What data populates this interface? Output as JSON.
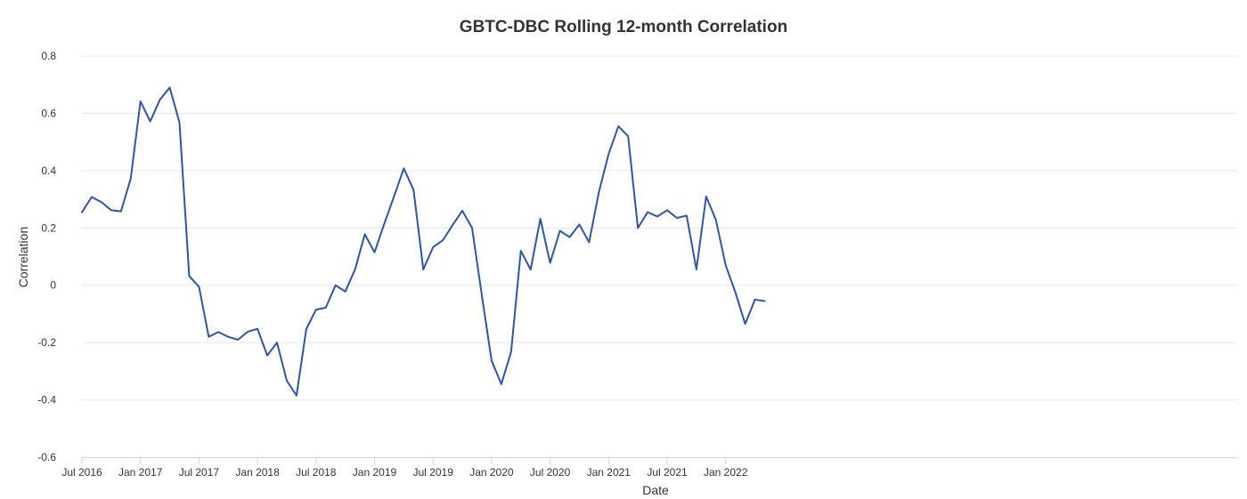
{
  "chart_data": {
    "type": "line",
    "title": "GBTC-DBC Rolling 12-month Correlation",
    "xlabel": "Date",
    "ylabel": "Correlation",
    "x_start": "2016-07",
    "ylim": [
      -0.6,
      0.8
    ],
    "y_ticks": [
      "0.8",
      "0.6",
      "0.4",
      "0.2",
      "0",
      "-0.2",
      "-0.4",
      "-0.6"
    ],
    "x_ticks": [
      {
        "date": "2016-07",
        "label": "Jul 2016"
      },
      {
        "date": "2017-01",
        "label": "Jan 2017"
      },
      {
        "date": "2017-07",
        "label": "Jul 2017"
      },
      {
        "date": "2018-01",
        "label": "Jan 2018"
      },
      {
        "date": "2018-07",
        "label": "Jul 2018"
      },
      {
        "date": "2019-01",
        "label": "Jan 2019"
      },
      {
        "date": "2019-07",
        "label": "Jul 2019"
      },
      {
        "date": "2020-01",
        "label": "Jan 2020"
      },
      {
        "date": "2020-07",
        "label": "Jul 2020"
      },
      {
        "date": "2021-01",
        "label": "Jan 2021"
      },
      {
        "date": "2021-07",
        "label": "Jul 2021"
      },
      {
        "date": "2022-01",
        "label": "Jan 2022"
      }
    ],
    "grid": true,
    "legend": "none",
    "series": [
      {
        "color": "#2f55a4",
        "points": [
          {
            "x": "2016-07",
            "y": 0.255
          },
          {
            "x": "2016-08",
            "y": 0.308
          },
          {
            "x": "2016-09",
            "y": 0.29
          },
          {
            "x": "2016-10",
            "y": 0.262
          },
          {
            "x": "2016-11",
            "y": 0.258
          },
          {
            "x": "2016-12",
            "y": 0.372
          },
          {
            "x": "2017-01",
            "y": 0.642
          },
          {
            "x": "2017-02",
            "y": 0.572
          },
          {
            "x": "2017-03",
            "y": 0.648
          },
          {
            "x": "2017-04",
            "y": 0.69
          },
          {
            "x": "2017-05",
            "y": 0.568
          },
          {
            "x": "2017-06",
            "y": 0.032
          },
          {
            "x": "2017-07",
            "y": -0.005
          },
          {
            "x": "2017-08",
            "y": -0.18
          },
          {
            "x": "2017-09",
            "y": -0.163
          },
          {
            "x": "2017-10",
            "y": -0.18
          },
          {
            "x": "2017-11",
            "y": -0.19
          },
          {
            "x": "2017-12",
            "y": -0.162
          },
          {
            "x": "2018-01",
            "y": -0.152
          },
          {
            "x": "2018-02",
            "y": -0.245
          },
          {
            "x": "2018-03",
            "y": -0.2
          },
          {
            "x": "2018-04",
            "y": -0.333
          },
          {
            "x": "2018-05",
            "y": -0.385
          },
          {
            "x": "2018-06",
            "y": -0.153
          },
          {
            "x": "2018-07",
            "y": -0.085
          },
          {
            "x": "2018-08",
            "y": -0.078
          },
          {
            "x": "2018-09",
            "y": 0.0
          },
          {
            "x": "2018-10",
            "y": -0.022
          },
          {
            "x": "2018-11",
            "y": 0.055
          },
          {
            "x": "2018-12",
            "y": 0.178
          },
          {
            "x": "2019-01",
            "y": 0.115
          },
          {
            "x": "2019-02",
            "y": 0.215
          },
          {
            "x": "2019-03",
            "y": 0.31
          },
          {
            "x": "2019-04",
            "y": 0.408
          },
          {
            "x": "2019-05",
            "y": 0.333
          },
          {
            "x": "2019-06",
            "y": 0.055
          },
          {
            "x": "2019-07",
            "y": 0.133
          },
          {
            "x": "2019-08",
            "y": 0.157
          },
          {
            "x": "2019-09",
            "y": 0.21
          },
          {
            "x": "2019-10",
            "y": 0.26
          },
          {
            "x": "2019-11",
            "y": 0.2
          },
          {
            "x": "2019-12",
            "y": -0.035
          },
          {
            "x": "2020-01",
            "y": -0.263
          },
          {
            "x": "2020-02",
            "y": -0.345
          },
          {
            "x": "2020-03",
            "y": -0.233
          },
          {
            "x": "2020-04",
            "y": 0.12
          },
          {
            "x": "2020-05",
            "y": 0.055
          },
          {
            "x": "2020-06",
            "y": 0.232
          },
          {
            "x": "2020-07",
            "y": 0.078
          },
          {
            "x": "2020-08",
            "y": 0.19
          },
          {
            "x": "2020-09",
            "y": 0.168
          },
          {
            "x": "2020-10",
            "y": 0.212
          },
          {
            "x": "2020-11",
            "y": 0.15
          },
          {
            "x": "2020-12",
            "y": 0.325
          },
          {
            "x": "2021-01",
            "y": 0.458
          },
          {
            "x": "2021-02",
            "y": 0.555
          },
          {
            "x": "2021-03",
            "y": 0.52
          },
          {
            "x": "2021-04",
            "y": 0.2
          },
          {
            "x": "2021-05",
            "y": 0.255
          },
          {
            "x": "2021-06",
            "y": 0.24
          },
          {
            "x": "2021-07",
            "y": 0.262
          },
          {
            "x": "2021-08",
            "y": 0.235
          },
          {
            "x": "2021-09",
            "y": 0.243
          },
          {
            "x": "2021-10",
            "y": 0.055
          },
          {
            "x": "2021-11",
            "y": 0.31
          },
          {
            "x": "2021-12",
            "y": 0.228
          },
          {
            "x": "2022-01",
            "y": 0.07
          },
          {
            "x": "2022-02",
            "y": -0.025
          },
          {
            "x": "2022-03",
            "y": -0.135
          },
          {
            "x": "2022-04",
            "y": -0.05
          },
          {
            "x": "2022-05",
            "y": -0.055
          }
        ]
      }
    ]
  }
}
